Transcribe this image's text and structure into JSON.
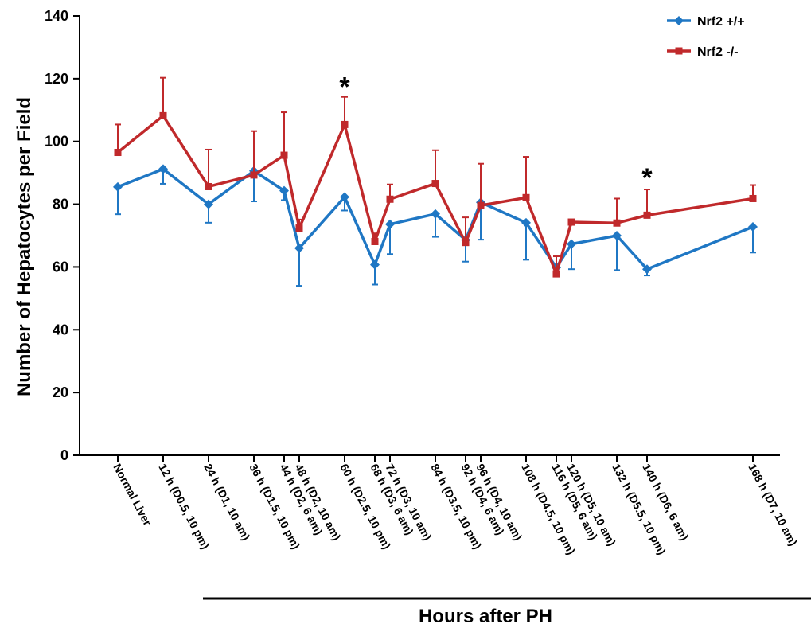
{
  "chart_data": {
    "type": "line",
    "xlabel": "Hours after PH",
    "ylabel": "Number of Hepatocytes per Field",
    "ylim": [
      0,
      140
    ],
    "yticks": [
      0,
      20,
      40,
      60,
      80,
      100,
      120,
      140
    ],
    "x_hours": [
      0,
      12,
      24,
      36,
      44,
      48,
      60,
      68,
      72,
      84,
      92,
      96,
      108,
      116,
      120,
      132,
      140,
      168
    ],
    "categories": [
      "Normal Liver",
      "12 h (D0.5, 10 pm)",
      "24 h (D1, 10 am)",
      "36 h (D1.5, 10 pm)",
      "44 h (D2, 6 am)",
      "48 h (D2, 10 am)",
      "60 h (D2.5, 10 pm)",
      "68 h (D3, 6 am)",
      "72 h (D3, 10 am)",
      "84 h (D3.5, 10 pm)",
      "92 h (D4, 6 am)",
      "96 h (D4, 10 am)",
      "108 h (D4.5, 10 pm)",
      "116 h (D5, 6 am)",
      "120 h (D5, 10 am)",
      "132 h (D5.5, 10 pm)",
      "140 h (D6, 6 am)",
      "168 h (D7, 10 am)"
    ],
    "series": [
      {
        "name": "Nrf2 +/+",
        "color": "#1f77c4",
        "marker": "diamond",
        "values": [
          85.5,
          91.2,
          80.0,
          90.6,
          84.3,
          66.0,
          82.3,
          60.7,
          73.6,
          76.9,
          68.6,
          80.6,
          74.1,
          59.8,
          67.3,
          70.0,
          59.3,
          72.8
        ],
        "error": [
          8.7,
          4.7,
          5.9,
          9.7,
          3.0,
          12.0,
          4.3,
          6.3,
          9.5,
          7.3,
          6.9,
          11.9,
          11.8,
          0.3,
          8.0,
          11.0,
          2.0,
          8.2
        ],
        "error_direction": "down"
      },
      {
        "name": "Nrf2 -/-",
        "color": "#c0292b",
        "marker": "square",
        "values": [
          96.5,
          108.2,
          85.6,
          89.3,
          95.6,
          72.4,
          105.4,
          68.1,
          81.6,
          86.6,
          67.8,
          79.6,
          82.1,
          57.8,
          74.3,
          74.0,
          76.5,
          81.8
        ],
        "error": [
          8.9,
          12.1,
          11.8,
          14.0,
          13.7,
          2.7,
          8.8,
          2.6,
          4.7,
          10.6,
          8.0,
          13.3,
          13.0,
          5.6,
          0,
          7.8,
          8.2,
          4.3
        ],
        "error_direction": "up"
      }
    ],
    "significance": [
      {
        "x_hours": 60,
        "y": 118,
        "label": "*"
      },
      {
        "x_hours": 140,
        "y": 89,
        "label": "*"
      }
    ],
    "legend_position": "top-right",
    "grid": false
  }
}
